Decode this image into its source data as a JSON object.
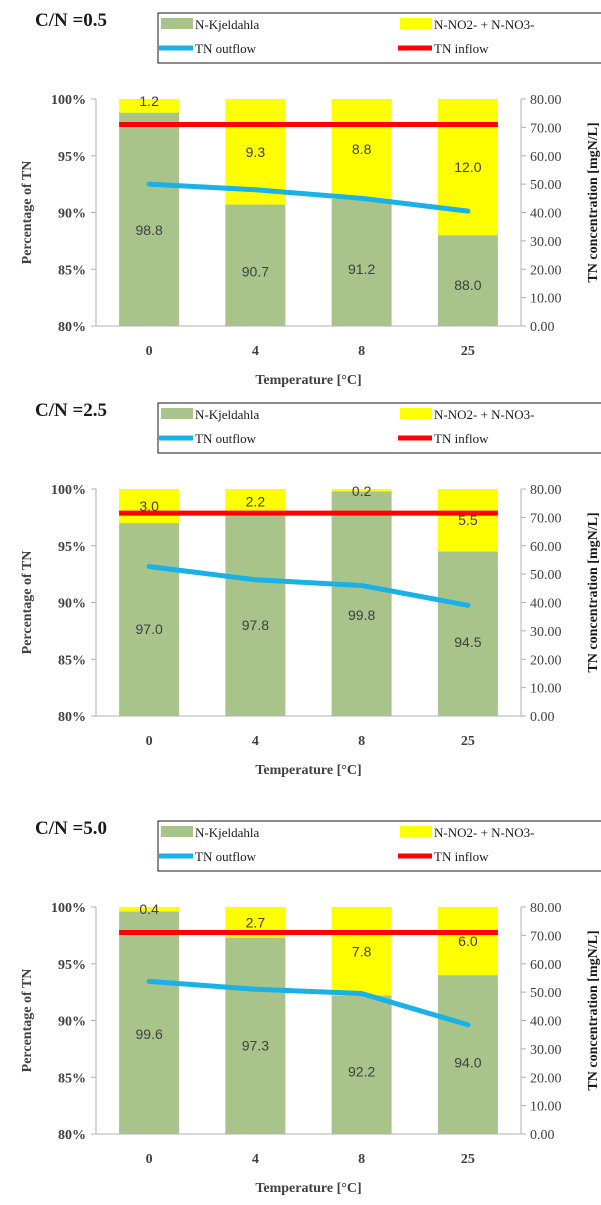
{
  "chart_data": [
    {
      "type": "bar",
      "title": "C/N =0.5",
      "categories": [
        "0",
        "4",
        "8",
        "25"
      ],
      "xlabel": "Temperature [°C]",
      "ylabel": "Percentage of TN",
      "y2label": "TN concentration [mgN/L]",
      "ylim": [
        80,
        100
      ],
      "y2lim": [
        0,
        80
      ],
      "yticks": [
        "80%",
        "85%",
        "90%",
        "95%",
        "100%"
      ],
      "y2ticks": [
        "0.00",
        "10.00",
        "20.00",
        "30.00",
        "40.00",
        "50.00",
        "60.00",
        "70.00",
        "80.00"
      ],
      "series": [
        {
          "name": "N-Kjeldahla",
          "values": [
            98.8,
            90.7,
            91.2,
            88.0
          ],
          "labels": [
            "98.8",
            "90.7",
            "91.2",
            "88.0"
          ]
        },
        {
          "name": "N-NO2- + N-NO3-",
          "values": [
            1.2,
            9.3,
            8.8,
            12.0
          ],
          "labels": [
            "1.2",
            "9.3",
            "8.8",
            "12.0"
          ]
        },
        {
          "name": "TN outflow",
          "axis": "secondary",
          "values": [
            50.0,
            48.0,
            45.0,
            40.5
          ]
        },
        {
          "name": "TN inflow",
          "axis": "secondary",
          "values": [
            71.0,
            71.0,
            71.0,
            71.0
          ]
        }
      ],
      "legend_position": "top-right",
      "grid": false
    },
    {
      "type": "bar",
      "title": "C/N =2.5",
      "categories": [
        "0",
        "4",
        "8",
        "25"
      ],
      "xlabel": "Temperature [°C]",
      "ylabel": "Percentage of TN",
      "y2label": "TN concentration [mgN/L]",
      "ylim": [
        80,
        100
      ],
      "y2lim": [
        0,
        80
      ],
      "yticks": [
        "80%",
        "85%",
        "90%",
        "95%",
        "100%"
      ],
      "y2ticks": [
        "0.00",
        "10.00",
        "20.00",
        "30.00",
        "40.00",
        "50.00",
        "60.00",
        "70.00",
        "80.00"
      ],
      "series": [
        {
          "name": "N-Kjeldahla",
          "values": [
            97.0,
            97.8,
            99.8,
            94.5
          ],
          "labels": [
            "97.0",
            "97.8",
            "99.8",
            "94.5"
          ]
        },
        {
          "name": "N-NO2- + N-NO3-",
          "values": [
            3.0,
            2.2,
            0.2,
            5.5
          ],
          "labels": [
            "3.0",
            "2.2",
            "0.2",
            "5.5"
          ]
        },
        {
          "name": "TN outflow",
          "axis": "secondary",
          "values": [
            52.7,
            48.0,
            46.0,
            39.0
          ]
        },
        {
          "name": "TN inflow",
          "axis": "secondary",
          "values": [
            71.5,
            71.5,
            71.5,
            71.5
          ]
        }
      ],
      "legend_position": "top-right",
      "grid": false
    },
    {
      "type": "bar",
      "title": "C/N =5.0",
      "categories": [
        "0",
        "4",
        "8",
        "25"
      ],
      "xlabel": "Temperature [°C]",
      "ylabel": "Percentage of TN",
      "y2label": "TN concentration [mgN/L]",
      "ylim": [
        80,
        100
      ],
      "y2lim": [
        0,
        80
      ],
      "yticks": [
        "80%",
        "85%",
        "90%",
        "95%",
        "100%"
      ],
      "y2ticks": [
        "0.00",
        "10.00",
        "20.00",
        "30.00",
        "40.00",
        "50.00",
        "60.00",
        "70.00",
        "80.00"
      ],
      "series": [
        {
          "name": "N-Kjeldahla",
          "values": [
            99.6,
            97.3,
            92.2,
            94.0
          ],
          "labels": [
            "99.6",
            "97.3",
            "92.2",
            "94.0"
          ]
        },
        {
          "name": "N-NO2- + N-NO3-",
          "values": [
            0.4,
            2.7,
            7.8,
            6.0
          ],
          "labels": [
            "0.4",
            "2.7",
            "7.8",
            "6.0"
          ]
        },
        {
          "name": "TN outflow",
          "axis": "secondary",
          "values": [
            53.8,
            51.0,
            49.5,
            38.5
          ]
        },
        {
          "name": "TN inflow",
          "axis": "secondary",
          "values": [
            71.0,
            71.0,
            71.0,
            71.0
          ]
        }
      ],
      "legend_position": "top-right",
      "grid": false
    }
  ],
  "colors": {
    "kjeldahl": "#a9c48a",
    "nox": "#ffff00",
    "outflow": "#19b1e6",
    "inflow": "#ff0000",
    "axis": "#b0b0b0",
    "text": "#404040",
    "title": "#1a1a1a"
  }
}
